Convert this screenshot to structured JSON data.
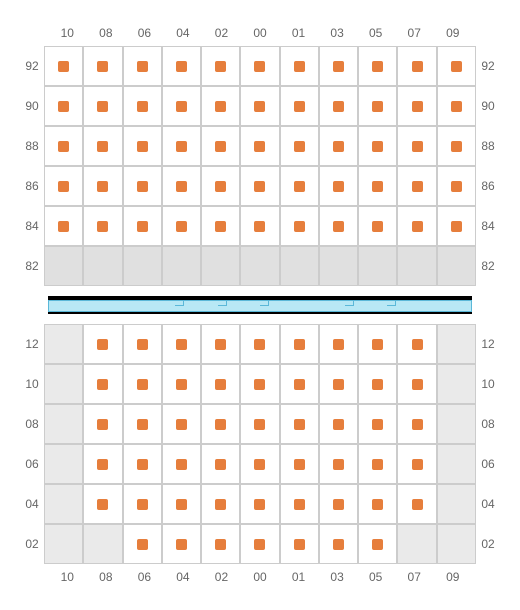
{
  "top_columns": [
    "10",
    "08",
    "06",
    "04",
    "02",
    "00",
    "01",
    "03",
    "05",
    "07",
    "09"
  ],
  "top_rows": [
    "92",
    "90",
    "88",
    "86",
    "84",
    "82"
  ],
  "top_grid": [
    [
      1,
      1,
      1,
      1,
      1,
      1,
      1,
      1,
      1,
      1,
      1
    ],
    [
      1,
      1,
      1,
      1,
      1,
      1,
      1,
      1,
      1,
      1,
      1
    ],
    [
      1,
      1,
      1,
      1,
      1,
      1,
      1,
      1,
      1,
      1,
      1
    ],
    [
      1,
      1,
      1,
      1,
      1,
      1,
      1,
      1,
      1,
      1,
      1
    ],
    [
      1,
      1,
      1,
      1,
      1,
      1,
      1,
      1,
      1,
      1,
      1
    ],
    [
      0,
      0,
      0,
      0,
      0,
      0,
      0,
      0,
      0,
      0,
      0
    ]
  ],
  "bottom_columns": [
    "10",
    "08",
    "06",
    "04",
    "02",
    "00",
    "01",
    "03",
    "05",
    "07",
    "09"
  ],
  "bottom_rows": [
    "12",
    "10",
    "08",
    "06",
    "04",
    "02"
  ],
  "bottom_grid": [
    [
      2,
      1,
      1,
      1,
      1,
      1,
      1,
      1,
      1,
      1,
      2
    ],
    [
      2,
      1,
      1,
      1,
      1,
      1,
      1,
      1,
      1,
      1,
      2
    ],
    [
      2,
      1,
      1,
      1,
      1,
      1,
      1,
      1,
      1,
      1,
      2
    ],
    [
      2,
      1,
      1,
      1,
      1,
      1,
      1,
      1,
      1,
      1,
      2
    ],
    [
      2,
      1,
      1,
      1,
      1,
      1,
      1,
      1,
      1,
      1,
      2
    ],
    [
      2,
      2,
      1,
      1,
      1,
      1,
      1,
      1,
      1,
      2,
      2
    ]
  ],
  "marker_color": "#e67e3c",
  "highlight_color": "#b8e8f5"
}
